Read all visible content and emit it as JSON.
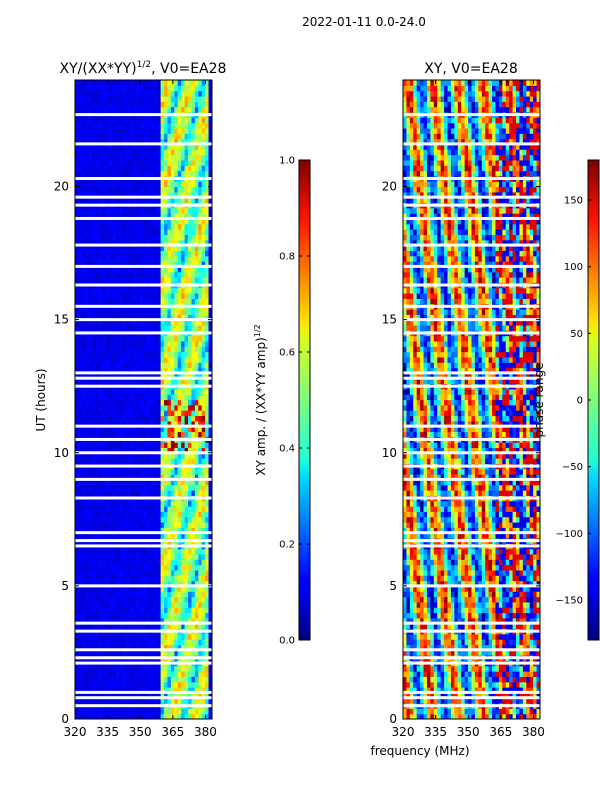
{
  "figure_title": "2022-01-11 0.0-24.0",
  "chart_data": [
    {
      "type": "heatmap",
      "title_prefix": "XY/(XX*YY)",
      "title_exponent": "1/2",
      "title_suffix": ", V0=EA28",
      "xlabel": "",
      "ylabel": "UT (hours)",
      "xlim": [
        320,
        383
      ],
      "ylim": [
        0,
        24
      ],
      "xticks": [
        320,
        335,
        350,
        365,
        380
      ],
      "yticks": [
        0,
        5,
        10,
        15,
        20
      ],
      "colorbar": {
        "label_prefix": "XY amp. / (XX*YY amp)",
        "label_exponent": "1/2",
        "range": [
          0.0,
          1.0
        ],
        "ticks": [
          "0.0",
          "0.2",
          "0.4",
          "0.6",
          "0.8",
          "1.0"
        ],
        "colormap": "jet"
      },
      "flagged_hours": [
        0.5,
        0.8,
        1.0,
        2.1,
        2.3,
        2.6,
        3.3,
        3.6,
        5.0,
        6.5,
        6.7,
        7.0,
        8.3,
        9.0,
        9.5,
        10.0,
        10.5,
        11.0,
        12.5,
        12.8,
        13.0,
        14.5,
        15.0,
        15.5,
        16.3,
        17.0,
        17.8,
        18.8,
        19.3,
        19.6,
        20.3,
        21.6,
        22.7
      ],
      "bright_band_mhz": [
        360,
        382
      ]
    },
    {
      "type": "heatmap",
      "title": "XY, V0=EA28",
      "xlabel": "frequency (MHz)",
      "ylabel": "",
      "xlim": [
        320,
        383
      ],
      "ylim": [
        0,
        24
      ],
      "xticks": [
        320,
        335,
        350,
        365,
        380
      ],
      "yticks": [
        0,
        5,
        10,
        15,
        20
      ],
      "colorbar": {
        "label": "phase range",
        "range": [
          -180,
          180
        ],
        "ticks": [
          "150",
          "100",
          "50",
          "0",
          "−50",
          "−100",
          "−150"
        ],
        "tick_values": [
          150,
          100,
          50,
          0,
          -50,
          -100,
          -150
        ],
        "colormap": "jet"
      },
      "flagged_hours": [
        0.5,
        0.8,
        1.0,
        2.1,
        2.3,
        2.6,
        3.3,
        3.6,
        5.0,
        6.5,
        6.7,
        7.0,
        8.3,
        9.0,
        9.5,
        10.0,
        10.5,
        11.0,
        12.5,
        12.8,
        13.0,
        14.5,
        15.0,
        15.5,
        16.3,
        17.0,
        17.8,
        18.8,
        19.3,
        19.6,
        20.3,
        21.6,
        22.7
      ]
    }
  ]
}
